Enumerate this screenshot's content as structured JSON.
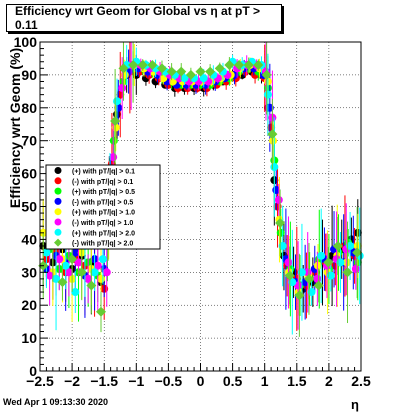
{
  "chart_data": {
    "type": "scatter",
    "title": "Efficiency wrt Geom for Global vs   η at pT > 0.11",
    "xlabel": "η",
    "ylabel": "Efficiency wrt Geom (%)",
    "xlim": [
      -2.5,
      2.5
    ],
    "ylim": [
      0,
      100
    ],
    "xticks": [
      "−2.5",
      "−2",
      "−1.5",
      "−1",
      "−0.5",
      "0",
      "0.5",
      "1",
      "1.5",
      "2",
      "2.5"
    ],
    "yticks": [
      "0",
      "10",
      "20",
      "30",
      "40",
      "50",
      "60",
      "70",
      "80",
      "90",
      "100"
    ],
    "legend_position": "left-middle",
    "grid": true,
    "series": [
      {
        "name": "(+) with pT/|q| > 0.1",
        "color": "#000000",
        "shape": "circle",
        "points": [
          [
            -2.45,
            38
          ],
          [
            -2.3,
            33
          ],
          [
            -2.15,
            37
          ],
          [
            -2.0,
            31
          ],
          [
            -1.85,
            35
          ],
          [
            -1.7,
            33
          ],
          [
            -1.55,
            27
          ],
          [
            -1.42,
            58
          ],
          [
            -1.3,
            78
          ],
          [
            -1.15,
            90
          ],
          [
            -1.0,
            90
          ],
          [
            -0.85,
            89
          ],
          [
            -0.7,
            88
          ],
          [
            -0.55,
            87
          ],
          [
            -0.4,
            86
          ],
          [
            -0.25,
            86
          ],
          [
            -0.1,
            86
          ],
          [
            0.05,
            86
          ],
          [
            0.2,
            87
          ],
          [
            0.35,
            88
          ],
          [
            0.5,
            90
          ],
          [
            0.65,
            90
          ],
          [
            0.8,
            91
          ],
          [
            0.95,
            90
          ],
          [
            1.05,
            80
          ],
          [
            1.15,
            58
          ],
          [
            1.3,
            35
          ],
          [
            1.45,
            30
          ],
          [
            1.6,
            25
          ],
          [
            1.75,
            27
          ],
          [
            1.9,
            33
          ],
          [
            2.05,
            35
          ],
          [
            2.2,
            37
          ],
          [
            2.35,
            40
          ],
          [
            2.45,
            42
          ]
        ]
      },
      {
        "name": "(-) with pT/|q| > 0.1",
        "color": "#ff0000",
        "shape": "circle",
        "points": [
          [
            -2.4,
            34
          ],
          [
            -2.25,
            36
          ],
          [
            -2.1,
            30
          ],
          [
            -1.95,
            34
          ],
          [
            -1.8,
            32
          ],
          [
            -1.65,
            30
          ],
          [
            -1.5,
            25
          ],
          [
            -1.38,
            63
          ],
          [
            -1.25,
            84
          ],
          [
            -1.1,
            91
          ],
          [
            -0.95,
            91
          ],
          [
            -0.8,
            90
          ],
          [
            -0.65,
            89
          ],
          [
            -0.5,
            87
          ],
          [
            -0.35,
            86
          ],
          [
            -0.2,
            86
          ],
          [
            -0.05,
            86
          ],
          [
            0.1,
            86
          ],
          [
            0.25,
            87
          ],
          [
            0.4,
            88
          ],
          [
            0.55,
            89
          ],
          [
            0.7,
            91
          ],
          [
            0.85,
            90
          ],
          [
            1.0,
            89
          ],
          [
            1.1,
            74
          ],
          [
            1.2,
            50
          ],
          [
            1.35,
            32
          ],
          [
            1.5,
            28
          ],
          [
            1.65,
            26
          ],
          [
            1.8,
            30
          ],
          [
            1.95,
            33
          ],
          [
            2.1,
            32
          ],
          [
            2.25,
            38
          ],
          [
            2.4,
            35
          ]
        ]
      },
      {
        "name": "(+) with pT/|q| > 0.5",
        "color": "#00ff00",
        "shape": "circle",
        "points": [
          [
            -2.35,
            37
          ],
          [
            -2.2,
            31
          ],
          [
            -2.05,
            35
          ],
          [
            -1.9,
            30
          ],
          [
            -1.75,
            33
          ],
          [
            -1.6,
            29
          ],
          [
            -1.45,
            40
          ],
          [
            -1.35,
            70
          ],
          [
            -1.2,
            88
          ],
          [
            -1.05,
            92
          ],
          [
            -0.9,
            92
          ],
          [
            -0.75,
            91
          ],
          [
            -0.6,
            90
          ],
          [
            -0.45,
            88
          ],
          [
            -0.3,
            87
          ],
          [
            -0.15,
            87
          ],
          [
            0.0,
            87
          ],
          [
            0.15,
            87
          ],
          [
            0.3,
            88
          ],
          [
            0.45,
            89
          ],
          [
            0.6,
            91
          ],
          [
            0.75,
            92
          ],
          [
            0.9,
            91
          ],
          [
            1.05,
            86
          ],
          [
            1.15,
            64
          ],
          [
            1.25,
            42
          ],
          [
            1.4,
            31
          ],
          [
            1.55,
            26
          ],
          [
            1.7,
            28
          ],
          [
            1.85,
            34
          ],
          [
            2.0,
            31
          ],
          [
            2.15,
            36
          ],
          [
            2.3,
            39
          ],
          [
            2.45,
            33
          ]
        ]
      },
      {
        "name": "(-) with pT/|q| > 0.5",
        "color": "#0000ff",
        "shape": "circle",
        "points": [
          [
            -2.4,
            31
          ],
          [
            -2.25,
            35
          ],
          [
            -2.1,
            33
          ],
          [
            -1.95,
            36
          ],
          [
            -1.8,
            29
          ],
          [
            -1.65,
            34
          ],
          [
            -1.5,
            31
          ],
          [
            -1.4,
            52
          ],
          [
            -1.28,
            80
          ],
          [
            -1.12,
            91
          ],
          [
            -0.97,
            92
          ],
          [
            -0.82,
            91
          ],
          [
            -0.67,
            90
          ],
          [
            -0.52,
            88
          ],
          [
            -0.37,
            87
          ],
          [
            -0.22,
            87
          ],
          [
            -0.07,
            87
          ],
          [
            0.08,
            87
          ],
          [
            0.23,
            88
          ],
          [
            0.38,
            89
          ],
          [
            0.53,
            90
          ],
          [
            0.68,
            92
          ],
          [
            0.83,
            92
          ],
          [
            0.98,
            90
          ],
          [
            1.08,
            80
          ],
          [
            1.18,
            55
          ],
          [
            1.33,
            34
          ],
          [
            1.48,
            27
          ],
          [
            1.63,
            27
          ],
          [
            1.78,
            31
          ],
          [
            1.93,
            34
          ],
          [
            2.08,
            37
          ],
          [
            2.23,
            33
          ],
          [
            2.38,
            36
          ]
        ]
      },
      {
        "name": "(+) with pT/|q| > 1.0",
        "color": "#ffff00",
        "shape": "circle",
        "points": [
          [
            -2.45,
            42
          ],
          [
            -2.3,
            30
          ],
          [
            -2.15,
            34
          ],
          [
            -2.0,
            28
          ],
          [
            -1.85,
            36
          ],
          [
            -1.7,
            31
          ],
          [
            -1.55,
            28
          ],
          [
            -1.43,
            45
          ],
          [
            -1.32,
            74
          ],
          [
            -1.18,
            90
          ],
          [
            -1.03,
            93
          ],
          [
            -0.88,
            92
          ],
          [
            -0.73,
            91
          ],
          [
            -0.58,
            89
          ],
          [
            -0.43,
            88
          ],
          [
            -0.28,
            88
          ],
          [
            -0.13,
            88
          ],
          [
            0.02,
            88
          ],
          [
            0.17,
            88
          ],
          [
            0.32,
            89
          ],
          [
            0.47,
            90
          ],
          [
            0.62,
            92
          ],
          [
            0.77,
            93
          ],
          [
            0.92,
            92
          ],
          [
            1.05,
            88
          ],
          [
            1.13,
            70
          ],
          [
            1.23,
            46
          ],
          [
            1.38,
            30
          ],
          [
            1.53,
            24
          ],
          [
            1.68,
            29
          ],
          [
            1.83,
            32
          ],
          [
            1.98,
            30
          ],
          [
            2.13,
            35
          ],
          [
            2.28,
            33
          ],
          [
            2.45,
            38
          ]
        ]
      },
      {
        "name": "(-) with pT/|q| > 1.0",
        "color": "#ff00ff",
        "shape": "circle",
        "points": [
          [
            -2.35,
            29
          ],
          [
            -2.2,
            34
          ],
          [
            -2.05,
            30
          ],
          [
            -1.9,
            33
          ],
          [
            -1.75,
            28
          ],
          [
            -1.6,
            32
          ],
          [
            -1.46,
            30
          ],
          [
            -1.36,
            65
          ],
          [
            -1.22,
            86
          ],
          [
            -1.08,
            93
          ],
          [
            -0.93,
            93
          ],
          [
            -0.78,
            92
          ],
          [
            -0.63,
            91
          ],
          [
            -0.48,
            90
          ],
          [
            -0.33,
            89
          ],
          [
            -0.18,
            88
          ],
          [
            -0.03,
            88
          ],
          [
            0.12,
            88
          ],
          [
            0.27,
            89
          ],
          [
            0.42,
            90
          ],
          [
            0.57,
            92
          ],
          [
            0.72,
            93
          ],
          [
            0.87,
            93
          ],
          [
            1.02,
            91
          ],
          [
            1.12,
            77
          ],
          [
            1.22,
            52
          ],
          [
            1.37,
            33
          ],
          [
            1.52,
            26
          ],
          [
            1.67,
            30
          ],
          [
            1.82,
            28
          ],
          [
            1.97,
            32
          ],
          [
            2.12,
            34
          ],
          [
            2.27,
            37
          ],
          [
            2.42,
            31
          ]
        ]
      },
      {
        "name": "(+) with pT/|q| > 2.0",
        "color": "#00ffff",
        "shape": "circle",
        "points": [
          [
            -2.4,
            36
          ],
          [
            -2.25,
            28
          ],
          [
            -2.1,
            32
          ],
          [
            -1.95,
            24
          ],
          [
            -1.8,
            38
          ],
          [
            -1.65,
            30
          ],
          [
            -1.52,
            34
          ],
          [
            -1.41,
            55
          ],
          [
            -1.3,
            82
          ],
          [
            -1.15,
            93
          ],
          [
            -1.0,
            94
          ],
          [
            -0.85,
            93
          ],
          [
            -0.7,
            92
          ],
          [
            -0.55,
            91
          ],
          [
            -0.4,
            90
          ],
          [
            -0.25,
            89
          ],
          [
            -0.1,
            89
          ],
          [
            0.05,
            89
          ],
          [
            0.2,
            90
          ],
          [
            0.35,
            91
          ],
          [
            0.5,
            94
          ],
          [
            0.65,
            93
          ],
          [
            0.8,
            94
          ],
          [
            0.95,
            93
          ],
          [
            1.05,
            84
          ],
          [
            1.15,
            62
          ],
          [
            1.28,
            38
          ],
          [
            1.43,
            27
          ],
          [
            1.58,
            30
          ],
          [
            1.73,
            24
          ],
          [
            1.88,
            35
          ],
          [
            2.03,
            29
          ],
          [
            2.18,
            33
          ],
          [
            2.33,
            38
          ],
          [
            2.48,
            35
          ]
        ]
      },
      {
        "name": "(-) with pT/|q| > 2.0",
        "color": "#66cc33",
        "shape": "diamond",
        "points": [
          [
            -2.45,
            32
          ],
          [
            -2.3,
            38
          ],
          [
            -2.15,
            27
          ],
          [
            -2.0,
            34
          ],
          [
            -1.85,
            30
          ],
          [
            -1.7,
            26
          ],
          [
            -1.55,
            18
          ],
          [
            -1.44,
            48
          ],
          [
            -1.33,
            76
          ],
          [
            -1.2,
            92
          ],
          [
            -1.05,
            93
          ],
          [
            -0.9,
            93
          ],
          [
            -0.75,
            93
          ],
          [
            -0.6,
            92
          ],
          [
            -0.45,
            91
          ],
          [
            -0.3,
            91
          ],
          [
            -0.15,
            90
          ],
          [
            0.0,
            91
          ],
          [
            0.15,
            91
          ],
          [
            0.3,
            92
          ],
          [
            0.45,
            93
          ],
          [
            0.6,
            93
          ],
          [
            0.75,
            93
          ],
          [
            0.9,
            93
          ],
          [
            1.03,
            90
          ],
          [
            1.12,
            72
          ],
          [
            1.24,
            45
          ],
          [
            1.39,
            29
          ],
          [
            1.54,
            23
          ],
          [
            1.69,
            28
          ],
          [
            1.84,
            26
          ],
          [
            1.99,
            33
          ],
          [
            2.14,
            38
          ],
          [
            2.29,
            30
          ],
          [
            2.44,
            36
          ]
        ]
      }
    ]
  },
  "footer": {
    "timestamp": "Wed Apr  1 09:13:30 2020"
  }
}
